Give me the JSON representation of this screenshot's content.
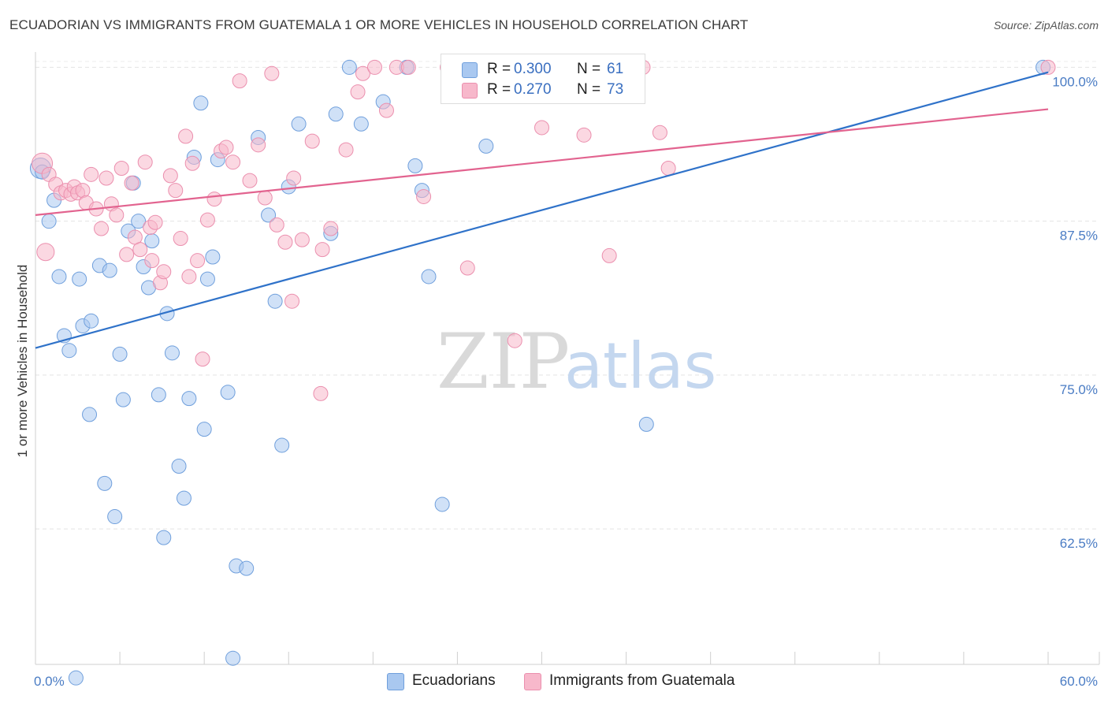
{
  "title": "ECUADORIAN VS IMMIGRANTS FROM GUATEMALA 1 OR MORE VEHICLES IN HOUSEHOLD CORRELATION CHART",
  "source": "Source: ZipAtlas.com",
  "watermark": {
    "zip": "ZIP",
    "atlas": "atlas"
  },
  "legend": {
    "rows": [
      {
        "r_label": "R =",
        "r_value": "0.300",
        "n_label": "N =",
        "n_value": "61",
        "color": "#a9c8f0"
      },
      {
        "r_label": "R =",
        "r_value": "0.270",
        "n_label": "N =",
        "n_value": "73",
        "color": "#f7b8cb"
      }
    ]
  },
  "bottom_legend": {
    "series1": "Ecuadorians",
    "series2": "Immigrants from Guatemala"
  },
  "chart_data": {
    "type": "scatter",
    "title": "ECUADORIAN VS IMMIGRANTS FROM GUATEMALA 1 OR MORE VEHICLES IN HOUSEHOLD CORRELATION CHART",
    "xlabel": "",
    "ylabel": "1 or more Vehicles in Household",
    "xlim": [
      0,
      60
    ],
    "ylim": [
      51.5,
      101.5
    ],
    "x_tick_labels": [
      "0.0%",
      "60.0%"
    ],
    "y_ticks": [
      62.5,
      75.0,
      87.5,
      100.0
    ],
    "y_tick_labels": [
      "62.5%",
      "75.0%",
      "87.5%",
      "100.0%"
    ],
    "series": [
      {
        "name": "Ecuadorians",
        "color": "#a9c8f0",
        "stroke": "#6f9fdc",
        "line_color": "#2f72c9",
        "trend": {
          "x": [
            0,
            60
          ],
          "y": [
            77.2,
            99.6
          ]
        },
        "points": [
          [
            0.3,
            91.8
          ],
          [
            0.4,
            91.5
          ],
          [
            0.8,
            87.5
          ],
          [
            1.1,
            89.2
          ],
          [
            1.4,
            83.0
          ],
          [
            1.7,
            78.2
          ],
          [
            2.0,
            77.0
          ],
          [
            2.6,
            82.8
          ],
          [
            2.8,
            79.0
          ],
          [
            3.3,
            79.4
          ],
          [
            3.2,
            71.8
          ],
          [
            3.8,
            83.9
          ],
          [
            4.1,
            66.2
          ],
          [
            4.4,
            83.5
          ],
          [
            4.7,
            63.5
          ],
          [
            5.0,
            76.7
          ],
          [
            5.2,
            73.0
          ],
          [
            5.5,
            86.7
          ],
          [
            5.8,
            90.6
          ],
          [
            6.1,
            87.5
          ],
          [
            6.4,
            83.8
          ],
          [
            6.7,
            82.1
          ],
          [
            6.9,
            85.9
          ],
          [
            7.3,
            73.4
          ],
          [
            7.6,
            61.8
          ],
          [
            7.8,
            80.0
          ],
          [
            8.1,
            76.8
          ],
          [
            8.5,
            67.6
          ],
          [
            8.8,
            65.0
          ],
          [
            9.1,
            73.1
          ],
          [
            9.4,
            92.7
          ],
          [
            9.8,
            97.1
          ],
          [
            10.0,
            70.6
          ],
          [
            10.2,
            82.8
          ],
          [
            10.5,
            84.6
          ],
          [
            10.8,
            92.5
          ],
          [
            11.4,
            73.6
          ],
          [
            11.7,
            52.0
          ],
          [
            11.9,
            59.5
          ],
          [
            12.5,
            59.3
          ],
          [
            13.2,
            94.3
          ],
          [
            13.8,
            88.0
          ],
          [
            14.2,
            81.0
          ],
          [
            14.6,
            69.3
          ],
          [
            15.0,
            90.3
          ],
          [
            15.6,
            95.4
          ],
          [
            17.5,
            86.5
          ],
          [
            17.8,
            96.2
          ],
          [
            18.6,
            100.0
          ],
          [
            19.3,
            95.4
          ],
          [
            20.6,
            97.2
          ],
          [
            22.0,
            100.0
          ],
          [
            22.5,
            92.0
          ],
          [
            22.9,
            90.0
          ],
          [
            23.3,
            83.0
          ],
          [
            24.1,
            64.5
          ],
          [
            24.8,
            98.0
          ],
          [
            26.7,
            93.6
          ],
          [
            36.2,
            71.0
          ],
          [
            59.7,
            100.0
          ],
          [
            2.4,
            50.4
          ]
        ]
      },
      {
        "name": "Immigrants from Guatemala",
        "color": "#f7b8cb",
        "stroke": "#eb8fae",
        "line_color": "#e2638f",
        "trend": {
          "x": [
            0,
            60
          ],
          "y": [
            88.0,
            96.6
          ]
        },
        "points": [
          [
            0.4,
            92.2
          ],
          [
            0.6,
            85.0
          ],
          [
            0.8,
            91.3
          ],
          [
            1.2,
            90.5
          ],
          [
            1.5,
            89.8
          ],
          [
            1.8,
            90.0
          ],
          [
            2.1,
            89.7
          ],
          [
            2.3,
            90.3
          ],
          [
            2.5,
            89.8
          ],
          [
            2.8,
            90.0
          ],
          [
            3.0,
            89.0
          ],
          [
            3.3,
            91.3
          ],
          [
            3.6,
            88.5
          ],
          [
            3.9,
            86.9
          ],
          [
            4.2,
            91.0
          ],
          [
            4.5,
            88.9
          ],
          [
            4.8,
            88.0
          ],
          [
            5.1,
            91.8
          ],
          [
            5.4,
            84.8
          ],
          [
            5.7,
            90.6
          ],
          [
            5.9,
            86.2
          ],
          [
            6.2,
            85.2
          ],
          [
            6.5,
            92.3
          ],
          [
            6.8,
            87.0
          ],
          [
            7.1,
            87.4
          ],
          [
            7.4,
            82.5
          ],
          [
            7.6,
            83.4
          ],
          [
            8.0,
            91.2
          ],
          [
            8.3,
            90.0
          ],
          [
            8.6,
            86.1
          ],
          [
            8.9,
            94.4
          ],
          [
            9.1,
            83.0
          ],
          [
            9.3,
            92.2
          ],
          [
            9.6,
            84.3
          ],
          [
            9.9,
            76.3
          ],
          [
            10.2,
            87.6
          ],
          [
            10.6,
            89.3
          ],
          [
            11.0,
            93.2
          ],
          [
            11.3,
            93.5
          ],
          [
            11.7,
            92.3
          ],
          [
            12.1,
            98.9
          ],
          [
            12.7,
            90.8
          ],
          [
            13.2,
            93.7
          ],
          [
            13.6,
            89.4
          ],
          [
            14.0,
            99.5
          ],
          [
            14.3,
            87.2
          ],
          [
            14.8,
            85.8
          ],
          [
            15.3,
            91.0
          ],
          [
            15.8,
            86.0
          ],
          [
            16.4,
            94.0
          ],
          [
            16.9,
            73.5
          ],
          [
            17.5,
            86.9
          ],
          [
            18.4,
            93.3
          ],
          [
            19.1,
            98.0
          ],
          [
            19.4,
            99.5
          ],
          [
            20.1,
            100.0
          ],
          [
            20.8,
            96.5
          ],
          [
            21.4,
            100.0
          ],
          [
            22.1,
            100.0
          ],
          [
            23.0,
            89.5
          ],
          [
            24.4,
            100.0
          ],
          [
            25.6,
            83.7
          ],
          [
            28.4,
            77.8
          ],
          [
            30.0,
            95.1
          ],
          [
            32.5,
            94.5
          ],
          [
            34.0,
            84.7
          ],
          [
            36.0,
            100.0
          ],
          [
            37.0,
            94.7
          ],
          [
            37.5,
            91.8
          ],
          [
            60.0,
            100.0
          ],
          [
            15.2,
            81.0
          ],
          [
            6.9,
            84.3
          ],
          [
            17.0,
            85.2
          ]
        ]
      }
    ]
  }
}
